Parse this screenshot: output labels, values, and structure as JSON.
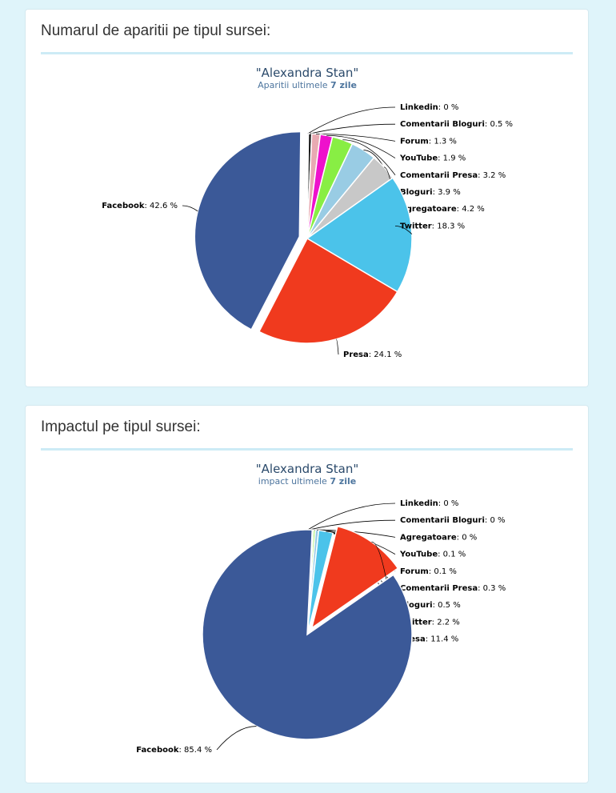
{
  "panels": [
    {
      "heading": "Numarul de aparitii pe tipul sursei:",
      "chart_data": {
        "type": "pie",
        "title": "\"Alexandra Stan\"",
        "subtitle_prefix": "Aparitii ultimele",
        "subtitle_period": "7 zile",
        "slices": [
          {
            "name": "Linkedin",
            "value": 0,
            "display": "0 %",
            "color": "#e83fd8"
          },
          {
            "name": "Comentarii Bloguri",
            "value": 0.5,
            "display": "0.5 %",
            "color": "#111111"
          },
          {
            "name": "Forum",
            "value": 1.3,
            "display": "1.3 %",
            "color": "#e8aab2"
          },
          {
            "name": "YouTube",
            "value": 1.9,
            "display": "1.9 %",
            "color": "#ee11cc"
          },
          {
            "name": "Comentarii Presa",
            "value": 3.2,
            "display": "3.2 %",
            "color": "#88ee44"
          },
          {
            "name": "Bloguri",
            "value": 3.9,
            "display": "3.9 %",
            "color": "#99cce4"
          },
          {
            "name": "Agregatoare",
            "value": 4.2,
            "display": "4.2 %",
            "color": "#c8c8c8"
          },
          {
            "name": "Twitter",
            "value": 18.3,
            "display": "18.3 %",
            "color": "#4bc3ea"
          },
          {
            "name": "Presa",
            "value": 24.1,
            "display": "24.1 %",
            "color": "#f03a1e"
          },
          {
            "name": "Facebook",
            "value": 42.6,
            "display": "42.6 %",
            "color": "#3b5998"
          }
        ]
      }
    },
    {
      "heading": "Impactul pe tipul sursei:",
      "chart_data": {
        "type": "pie",
        "title": "\"Alexandra Stan\"",
        "subtitle_prefix": "impact ultimele",
        "subtitle_period": "7 zile",
        "slices": [
          {
            "name": "Linkedin",
            "value": 0,
            "display": "0 %",
            "color": "#e83fd8"
          },
          {
            "name": "Comentarii Bloguri",
            "value": 0,
            "display": "0 %",
            "color": "#111111"
          },
          {
            "name": "Agregatoare",
            "value": 0,
            "display": "0 %",
            "color": "#c8c8c8"
          },
          {
            "name": "YouTube",
            "value": 0.1,
            "display": "0.1 %",
            "color": "#ee11cc"
          },
          {
            "name": "Forum",
            "value": 0.1,
            "display": "0.1 %",
            "color": "#e8aab2"
          },
          {
            "name": "Comentarii Presa",
            "value": 0.3,
            "display": "0.3 %",
            "color": "#88ee44"
          },
          {
            "name": "Bloguri",
            "value": 0.5,
            "display": "0.5 %",
            "color": "#99cce4"
          },
          {
            "name": "Twitter",
            "value": 2.2,
            "display": "2.2 %",
            "color": "#4bc3ea"
          },
          {
            "name": "Presa",
            "value": 11.4,
            "display": "11.4 %",
            "color": "#f03a1e"
          },
          {
            "name": "Facebook",
            "value": 85.4,
            "display": "85.4 %",
            "color": "#3b5998"
          }
        ]
      }
    }
  ]
}
